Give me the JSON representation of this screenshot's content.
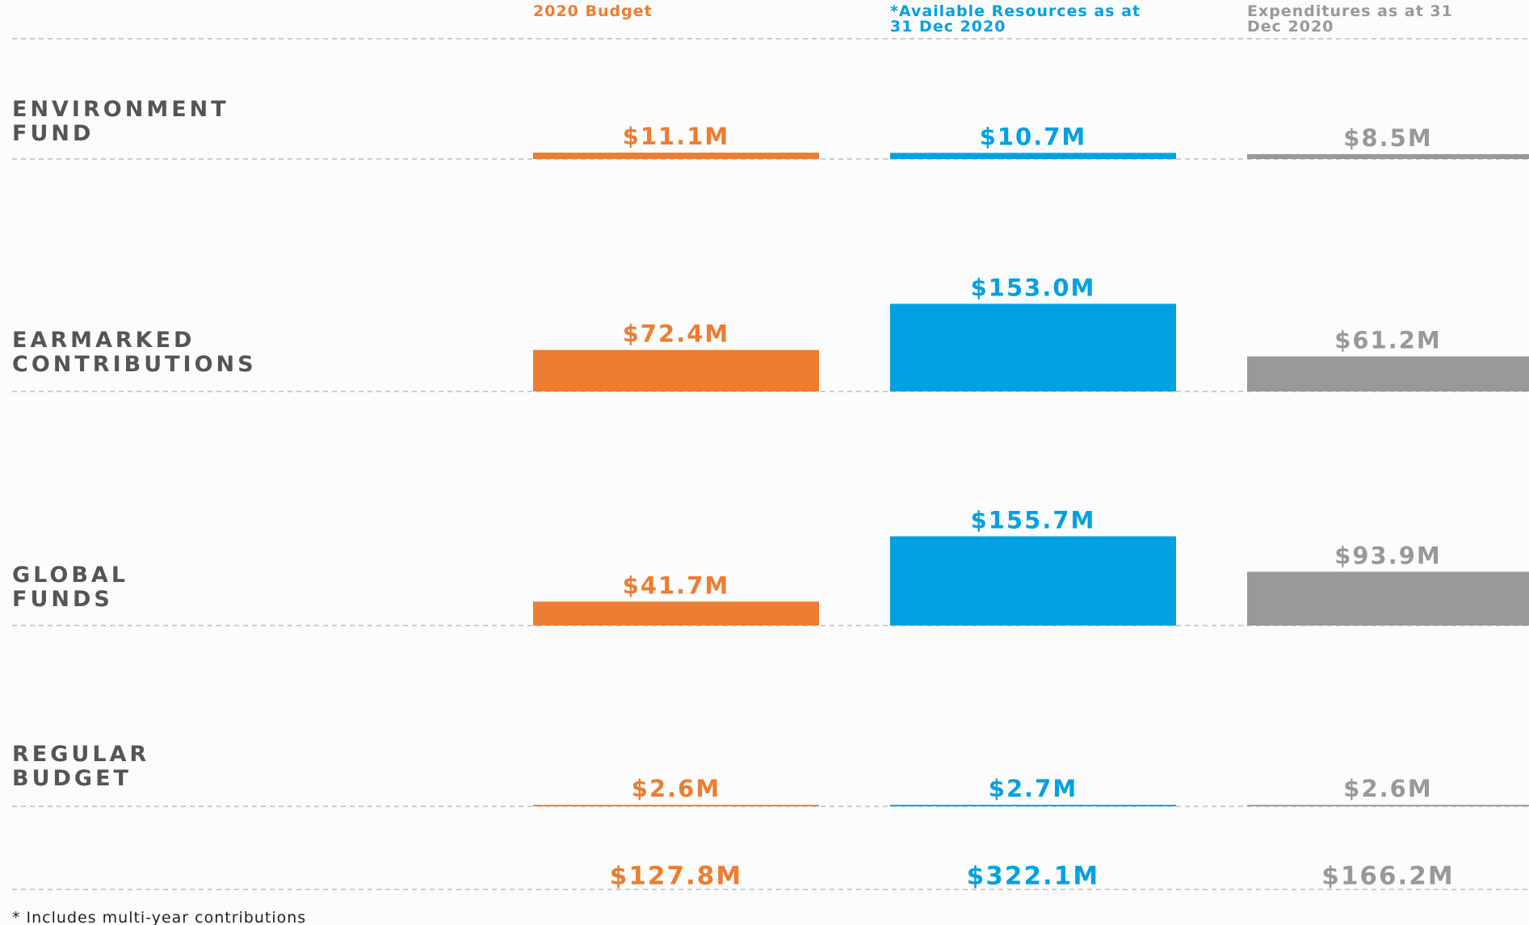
{
  "chart_data": {
    "type": "bar",
    "categories": [
      "ENVIRONMENT FUND",
      "EARMARKED CONTRIBUTIONS",
      "GLOBAL FUNDS",
      "REGULAR BUDGET"
    ],
    "series": [
      {
        "name": "2020 Budget",
        "color": "#ed7d31",
        "values": [
          11.1,
          72.4,
          41.7,
          2.6
        ],
        "value_labels": [
          "$11.1M",
          "$72.4M",
          "$41.7M",
          "$2.6M"
        ],
        "total": 127.8,
        "total_label": "$127.8M"
      },
      {
        "name": "*Available Resources as at 31 Dec 2020",
        "color": "#00a0e3",
        "values": [
          10.7,
          153.0,
          155.7,
          2.7
        ],
        "value_labels": [
          "$10.7M",
          "$153.0M",
          "$155.7M",
          "$2.7M"
        ],
        "total": 322.1,
        "total_label": "$322.1M"
      },
      {
        "name": "Expenditures as at 31 Dec 2020",
        "color": "#999999",
        "values": [
          8.5,
          61.2,
          93.9,
          2.6
        ],
        "value_labels": [
          "$8.5M",
          "$61.2M",
          "$93.9M",
          "$2.6M"
        ],
        "total": 166.2,
        "total_label": "$166.2M"
      }
    ],
    "footnote": "* Includes multi-year contributions"
  }
}
